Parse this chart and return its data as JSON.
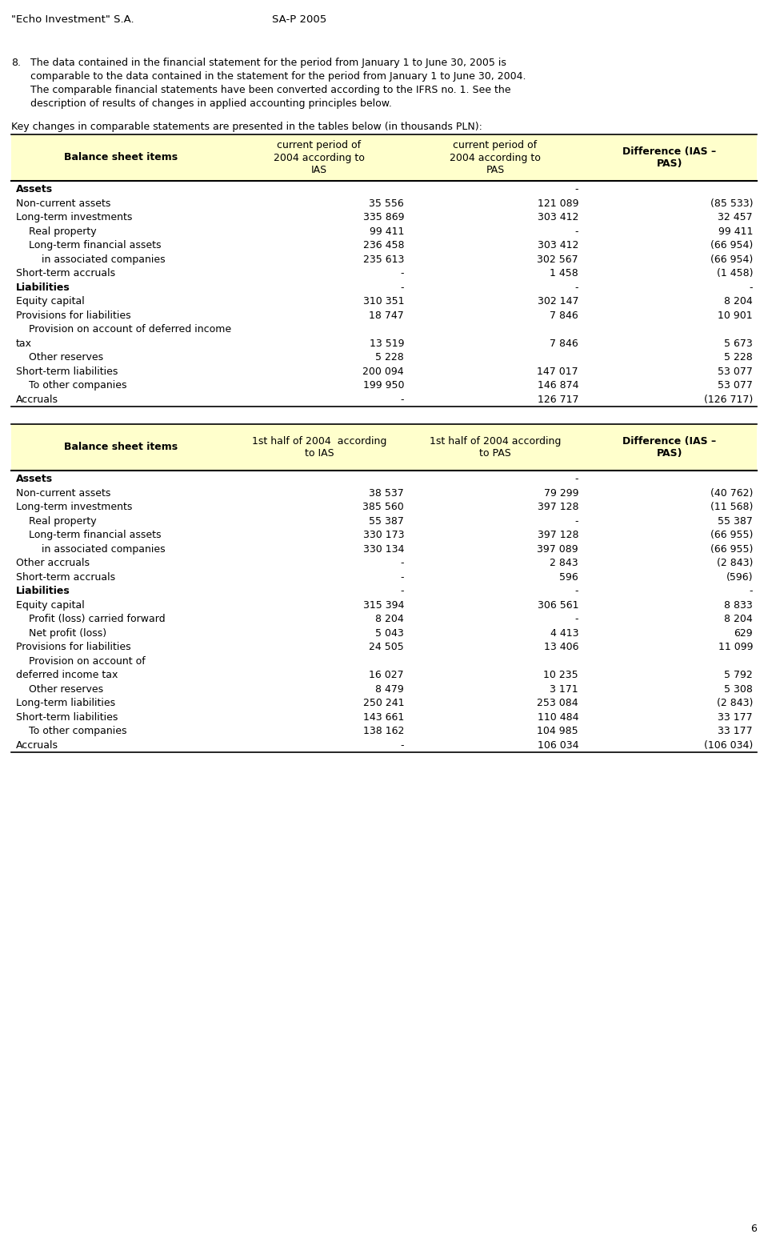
{
  "header_left": "\"Echo Investment\" S.A.",
  "header_center": "SA-P 2005",
  "page_number": "6",
  "table1": {
    "header_bg": "#FFFFCC",
    "col0_header": "Balance sheet items",
    "col1_header": "current period of\n2004 according to\nIAS",
    "col2_header": "current period of\n2004 according to\nPAS",
    "col3_header": "Difference (IAS –\nPAS)",
    "rows": [
      {
        "label": "Assets",
        "bold": true,
        "indent": 0,
        "v1": "",
        "v2": "-",
        "v3": ""
      },
      {
        "label": "Non-current assets",
        "bold": false,
        "indent": 0,
        "v1": "35 556",
        "v2": "121 089",
        "v3": "(85 533)"
      },
      {
        "label": "Long-term investments",
        "bold": false,
        "indent": 0,
        "v1": "335 869",
        "v2": "303 412",
        "v3": "32 457"
      },
      {
        "label": "Real property",
        "bold": false,
        "indent": 1,
        "v1": "99 411",
        "v2": "-",
        "v3": "99 411"
      },
      {
        "label": "Long-term financial assets",
        "bold": false,
        "indent": 1,
        "v1": "236 458",
        "v2": "303 412",
        "v3": "(66 954)"
      },
      {
        "label": "in associated companies",
        "bold": false,
        "indent": 2,
        "v1": "235 613",
        "v2": "302 567",
        "v3": "(66 954)"
      },
      {
        "label": "Short-term accruals",
        "bold": false,
        "indent": 0,
        "v1": "-",
        "v2": "1 458",
        "v3": "(1 458)"
      },
      {
        "label": "Liabilities",
        "bold": true,
        "indent": 0,
        "v1": "-",
        "v2": "-",
        "v3": "-"
      },
      {
        "label": "Equity capital",
        "bold": false,
        "indent": 0,
        "v1": "310 351",
        "v2": "302 147",
        "v3": "8 204"
      },
      {
        "label": "Provisions for liabilities",
        "bold": false,
        "indent": 0,
        "v1": "18 747",
        "v2": "7 846",
        "v3": "10 901"
      },
      {
        "label": "Provision on account of deferred income",
        "bold": false,
        "indent": 1,
        "v1": "",
        "v2": "",
        "v3": "",
        "continuation": true
      },
      {
        "label": "tax",
        "bold": false,
        "indent": 0,
        "v1": "13 519",
        "v2": "7 846",
        "v3": "5 673",
        "continuation_val": true
      },
      {
        "label": "Other reserves",
        "bold": false,
        "indent": 1,
        "v1": "5 228",
        "v2": "",
        "v3": "5 228"
      },
      {
        "label": "Short-term liabilities",
        "bold": false,
        "indent": 0,
        "v1": "200 094",
        "v2": "147 017",
        "v3": "53 077"
      },
      {
        "label": "To other companies",
        "bold": false,
        "indent": 1,
        "v1": "199 950",
        "v2": "146 874",
        "v3": "53 077"
      },
      {
        "label": "Accruals",
        "bold": false,
        "indent": 0,
        "v1": "-",
        "v2": "126 717",
        "v3": "(126 717)"
      }
    ]
  },
  "table2": {
    "header_bg": "#FFFFCC",
    "col0_header": "Balance sheet items",
    "col1_header": "1st half of 2004  according\nto IAS",
    "col2_header": "1st half of 2004 according\nto PAS",
    "col3_header": "Difference (IAS –\nPAS)",
    "rows": [
      {
        "label": "Assets",
        "bold": true,
        "indent": 0,
        "v1": "",
        "v2": "-",
        "v3": ""
      },
      {
        "label": "Non-current assets",
        "bold": false,
        "indent": 0,
        "v1": "38 537",
        "v2": "79 299",
        "v3": "(40 762)"
      },
      {
        "label": "Long-term investments",
        "bold": false,
        "indent": 0,
        "v1": "385 560",
        "v2": "397 128",
        "v3": "(11 568)"
      },
      {
        "label": "Real property",
        "bold": false,
        "indent": 1,
        "v1": "55 387",
        "v2": "-",
        "v3": "55 387"
      },
      {
        "label": "Long-term financial assets",
        "bold": false,
        "indent": 1,
        "v1": "330 173",
        "v2": "397 128",
        "v3": "(66 955)"
      },
      {
        "label": "in associated companies",
        "bold": false,
        "indent": 2,
        "v1": "330 134",
        "v2": "397 089",
        "v3": "(66 955)"
      },
      {
        "label": "Other accruals",
        "bold": false,
        "indent": 0,
        "v1": "-",
        "v2": "2 843",
        "v3": "(2 843)"
      },
      {
        "label": "Short-term accruals",
        "bold": false,
        "indent": 0,
        "v1": "-",
        "v2": "596",
        "v3": "(596)"
      },
      {
        "label": "Liabilities",
        "bold": true,
        "indent": 0,
        "v1": "-",
        "v2": "-",
        "v3": "-"
      },
      {
        "label": "Equity capital",
        "bold": false,
        "indent": 0,
        "v1": "315 394",
        "v2": "306 561",
        "v3": "8 833"
      },
      {
        "label": "Profit (loss) carried forward",
        "bold": false,
        "indent": 1,
        "v1": "8 204",
        "v2": "-",
        "v3": "8 204"
      },
      {
        "label": "Net profit (loss)",
        "bold": false,
        "indent": 1,
        "v1": "5 043",
        "v2": "4 413",
        "v3": "629"
      },
      {
        "label": "Provisions for liabilities",
        "bold": false,
        "indent": 0,
        "v1": "24 505",
        "v2": "13 406",
        "v3": "11 099"
      },
      {
        "label": "Provision on account of",
        "bold": false,
        "indent": 1,
        "v1": "",
        "v2": "",
        "v3": "",
        "continuation": true
      },
      {
        "label": "deferred income tax",
        "bold": false,
        "indent": 0,
        "v1": "16 027",
        "v2": "10 235",
        "v3": "5 792",
        "continuation_val": true
      },
      {
        "label": "Other reserves",
        "bold": false,
        "indent": 1,
        "v1": "8 479",
        "v2": "3 171",
        "v3": "5 308"
      },
      {
        "label": "Long-term liabilities",
        "bold": false,
        "indent": 0,
        "v1": "250 241",
        "v2": "253 084",
        "v3": "(2 843)"
      },
      {
        "label": "Short-term liabilities",
        "bold": false,
        "indent": 0,
        "v1": "143 661",
        "v2": "110 484",
        "v3": "33 177"
      },
      {
        "label": "To other companies",
        "bold": false,
        "indent": 1,
        "v1": "138 162",
        "v2": "104 985",
        "v3": "33 177"
      },
      {
        "label": "Accruals",
        "bold": false,
        "indent": 0,
        "v1": "-",
        "v2": "106 034",
        "v3": "(106 034)"
      }
    ]
  }
}
